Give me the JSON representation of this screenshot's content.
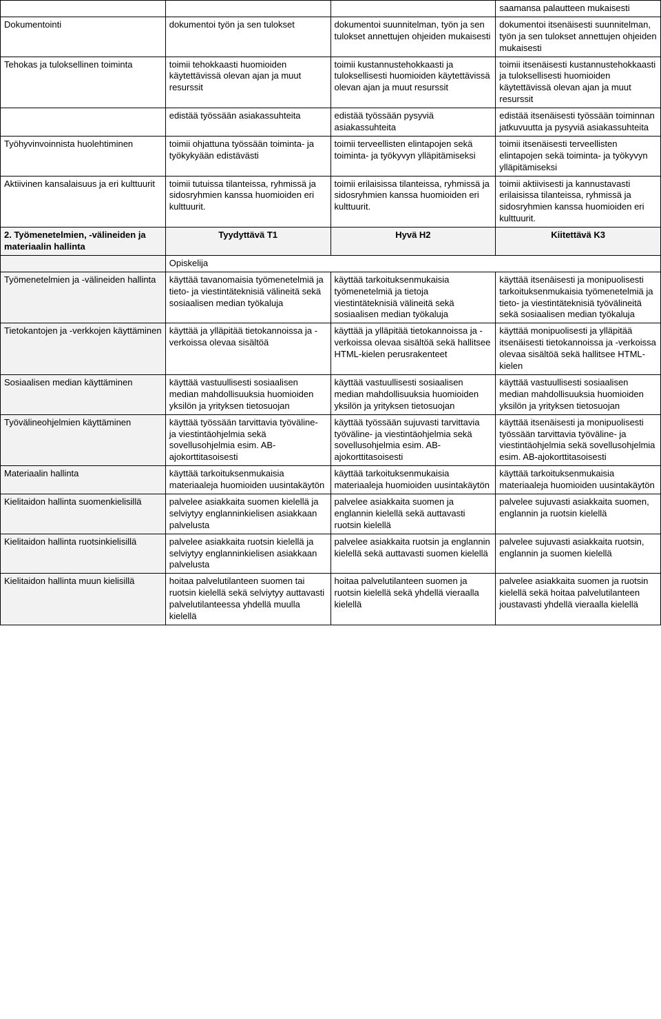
{
  "colors": {
    "shaded_bg": "#f2f2f2",
    "border": "#000000",
    "text": "#000000",
    "bg": "#ffffff"
  },
  "typography": {
    "font_family": "Arial",
    "font_size_pt": 10,
    "line_height": 1.3
  },
  "table": {
    "column_widths_percent": [
      25,
      25,
      25,
      25
    ],
    "rows": [
      {
        "c1": "",
        "c2": "",
        "c3": "",
        "c4": "saamansa palautteen mukaisesti"
      },
      {
        "c1": "Dokumentointi",
        "c2": "dokumentoi työn ja sen tulokset",
        "c3": "dokumentoi suunnitelman, työn ja sen tulokset annettujen ohjeiden mukaisesti",
        "c4": "dokumentoi itsenäisesti suunnitelman, työn ja sen tulokset annettujen ohjeiden mukaisesti"
      },
      {
        "c1": "Tehokas ja tuloksellinen toiminta",
        "c2": "toimii tehokkaasti huomioiden käytettävissä olevan ajan ja muut resurssit",
        "c3": "toimii kustannustehokkaasti ja tuloksellisesti huomioiden käytettävissä olevan ajan ja muut resurssit",
        "c4": "toimii itsenäisesti kustannustehokkaasti ja tuloksellisesti huomioiden käytettävissä olevan ajan ja muut resurssit"
      },
      {
        "c1": "",
        "c2": "edistää työssään asiakassuhteita",
        "c3": "edistää työssään pysyviä asiakassuhteita",
        "c4": "edistää itsenäisesti työssään toiminnan jatkuvuutta ja pysyviä asiakassuhteita"
      },
      {
        "c1": "Työhyvinvoinnista huolehtiminen",
        "c2": "toimii ohjattuna työssään toiminta- ja työkykyään edistävästi",
        "c3": "toimii terveellisten elintapojen sekä toiminta- ja työkyvyn ylläpitämiseksi",
        "c4": "toimii itsenäisesti terveellisten elintapojen sekä toiminta- ja työkyvyn ylläpitämiseksi"
      },
      {
        "c1": "Aktiivinen kansalaisuus ja eri kulttuurit",
        "c2": "toimii tutuissa tilanteissa, ryhmissä ja sidosryhmien kanssa huomioiden eri kulttuurit.",
        "c3": "toimii erilaisissa tilanteissa, ryhmissä ja sidosryhmien kanssa huomioiden eri kulttuurit.",
        "c4": "toimii aktiivisesti ja kannustavasti erilaisissa tilanteissa, ryhmissä ja sidosryhmien kanssa huomioiden eri kulttuurit."
      },
      {
        "shaded": true,
        "bold": true,
        "center_234": true,
        "c1": "2. Työmenetelmien, -välineiden ja materiaalin hallinta",
        "c2": "Tyydyttävä T1",
        "c3": "Hyvä H2",
        "c4": "Kiitettävä K3"
      },
      {
        "shaded_col1": true,
        "c1": "",
        "c2": "Opiskelija",
        "c3": "",
        "c4": "",
        "merge_234": false
      },
      {
        "c1": "Työmenetelmien ja -välineiden hallinta",
        "c2": "käyttää tavanomaisia työmenetelmiä ja tieto- ja viestintäteknisiä välineitä sekä sosiaalisen median työkaluja",
        "c3": "käyttää tarkoituksenmukaisia työmenetelmiä ja tietoja viestintäteknisiä välineitä sekä sosiaalisen median työkaluja",
        "c4": "käyttää itsenäisesti ja monipuolisesti tarkoituksenmukaisia työmenetelmiä ja tieto- ja viestintäteknisiä työvälineitä sekä sosiaalisen median työkaluja"
      },
      {
        "c1": "Tietokantojen ja -verkkojen käyttäminen",
        "c2": "käyttää ja ylläpitää tietokannoissa ja -verkoissa olevaa sisältöä",
        "c3": "käyttää ja ylläpitää tietokannoissa ja -verkoissa olevaa sisältöä sekä hallitsee HTML-kielen perusrakenteet",
        "c4": "käyttää monipuolisesti ja ylläpitää itsenäisesti tietokannoissa ja -verkoissa olevaa sisältöä sekä hallitsee HTML-kielen"
      },
      {
        "c1": "Sosiaalisen median käyttäminen",
        "c2": "käyttää vastuullisesti sosiaalisen median mahdollisuuksia huomioiden yksilön ja yrityksen tietosuojan",
        "c3": "käyttää vastuullisesti sosiaalisen median mahdollisuuksia huomioiden yksilön ja yrityksen tietosuojan",
        "c4": "käyttää vastuullisesti sosiaalisen median mahdollisuuksia huomioiden yksilön ja yrityksen tietosuojan"
      },
      {
        "c1": "Työvälineohjelmien käyttäminen",
        "c2": "käyttää työssään tarvittavia työväline- ja viestintäohjelmia sekä sovellusohjelmia esim. AB-ajokorttitasoisesti",
        "c3": "käyttää työssään sujuvasti tarvittavia työväline- ja viestintäohjelmia sekä sovellusohjelmia esim. AB-ajokorttitasoisesti",
        "c4": "käyttää itsenäisesti ja monipuolisesti työssään tarvittavia työväline- ja viestintäohjelmia sekä sovellusohjelmia esim. AB-ajokorttitasoisesti"
      },
      {
        "c1": "Materiaalin hallinta",
        "c2": "käyttää tarkoituksenmukaisia materiaaleja huomioiden uusintakäytön",
        "c3": "käyttää tarkoituksenmukaisia materiaaleja huomioiden uusintakäytön",
        "c4": "käyttää tarkoituksenmukaisia materiaaleja huomioiden uusintakäytön"
      },
      {
        "c1": "Kielitaidon hallinta suomenkielisillä",
        "c2": "palvelee asiakkaita suomen kielellä ja selviytyy englanninkielisen asiakkaan palvelusta",
        "c3": "palvelee asiakkaita suomen ja englannin kielellä sekä auttavasti ruotsin kielellä",
        "c4": "palvelee sujuvasti asiakkaita suomen, englannin ja ruotsin kielellä"
      },
      {
        "c1": "Kielitaidon hallinta ruotsinkielisillä",
        "c2": "palvelee asiakkaita ruotsin kielellä ja selviytyy englanninkielisen asiakkaan palvelusta",
        "c3": "palvelee asiakkaita ruotsin ja englannin kielellä sekä auttavasti suomen kielellä",
        "c4": "palvelee sujuvasti asiakkaita ruotsin, englannin ja suomen kielellä"
      },
      {
        "c1": "Kielitaidon hallinta muun kielisillä",
        "c2": "hoitaa palvelutilanteen suomen tai ruotsin kielellä sekä selviytyy auttavasti palvelutilanteessa yhdellä muulla kielellä",
        "c3": "hoitaa palvelutilanteen suomen ja ruotsin kielellä sekä yhdellä vieraalla kielellä",
        "c4": "palvelee asiakkaita suomen ja ruotsin kielellä sekä hoitaa palvelutilanteen joustavasti yhdellä vieraalla kielellä"
      }
    ]
  }
}
